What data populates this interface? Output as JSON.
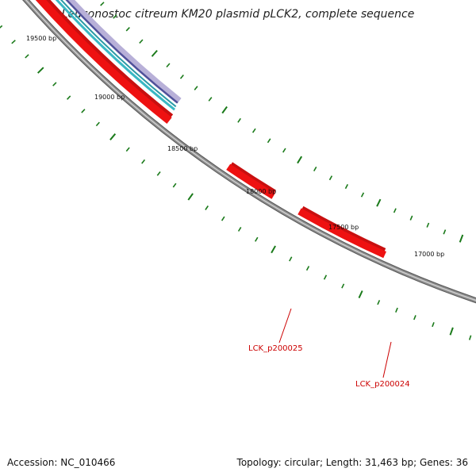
{
  "title": "Leuconostoc citreum KM20 plasmid pLCK2, complete sequence",
  "accession": "Accession: NC_010466",
  "summary": "Topology: circular; Length: 31,463 bp; Genes: 36",
  "colors": {
    "backbone": "#8c8c8c",
    "gene_forward": "#ee1111",
    "tick": "#1a7a1a",
    "gene_label": "#cc0000",
    "track_cyan": "#3ab8c4",
    "track_blue": "#50509a",
    "track_lavender": "#b8b0d8"
  },
  "scale_labels": [
    {
      "label": "19500 bp"
    },
    {
      "label": "19000 bp"
    },
    {
      "label": "18500 bp"
    },
    {
      "label": "18000 bp"
    },
    {
      "label": "17500 bp"
    },
    {
      "label": "17000 bp"
    }
  ],
  "genes": [
    {
      "name": "LCK_p200025"
    },
    {
      "name": "LCK_p200024"
    }
  ]
}
